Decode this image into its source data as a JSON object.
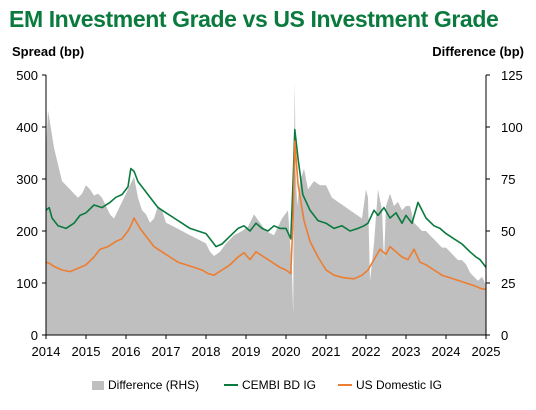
{
  "title": "EM Investment Grade vs US Investment Grade",
  "legend": {
    "items": [
      {
        "label": "Difference (RHS)",
        "color": "#bfbfbf",
        "kind": "area"
      },
      {
        "label": "CEMBI BD IG",
        "color": "#0a7a3e",
        "kind": "line"
      },
      {
        "label": "US Domestic IG",
        "color": "#ed7d31",
        "kind": "line"
      }
    ]
  },
  "chart_data": {
    "type": "line",
    "title": "EM Investment Grade vs US Investment Grade",
    "ylabel": "Spread (bp)",
    "y2label": "Difference (bp)",
    "ylim": [
      0,
      500
    ],
    "y2lim": [
      0,
      125
    ],
    "yticks": [
      "0",
      "100",
      "200",
      "300",
      "400",
      "500"
    ],
    "y2ticks": [
      "0",
      "25",
      "50",
      "75",
      "100",
      "125"
    ],
    "xlim": [
      2014,
      2025
    ],
    "xticks": [
      "2014",
      "2015",
      "2016",
      "2017",
      "2018",
      "2019",
      "2020",
      "2021",
      "2022",
      "2023",
      "2024",
      "2025"
    ],
    "grid": false,
    "legend_position": "bottom",
    "series": [
      {
        "name": "CEMBI BD IG",
        "axis": "left",
        "color": "#0a7a3e",
        "x": [
          2014.0,
          2014.08,
          2014.15,
          2014.3,
          2014.5,
          2014.7,
          2014.85,
          2015.0,
          2015.2,
          2015.4,
          2015.6,
          2015.75,
          2015.9,
          2016.05,
          2016.12,
          2016.2,
          2016.3,
          2016.45,
          2016.6,
          2016.8,
          2017.0,
          2017.2,
          2017.4,
          2017.6,
          2017.8,
          2018.0,
          2018.1,
          2018.25,
          2018.4,
          2018.6,
          2018.8,
          2018.95,
          2019.1,
          2019.25,
          2019.4,
          2019.55,
          2019.7,
          2019.85,
          2020.0,
          2020.12,
          2020.18,
          2020.22,
          2020.3,
          2020.42,
          2020.6,
          2020.8,
          2021.0,
          2021.2,
          2021.4,
          2021.6,
          2021.8,
          2021.95,
          2022.05,
          2022.2,
          2022.3,
          2022.45,
          2022.6,
          2022.75,
          2022.9,
          2023.0,
          2023.15,
          2023.3,
          2023.5,
          2023.7,
          2023.85,
          2024.0,
          2024.2,
          2024.4,
          2024.6,
          2024.75,
          2024.85,
          2024.95,
          2025.0
        ],
        "values": [
          240,
          245,
          225,
          210,
          205,
          215,
          230,
          235,
          250,
          245,
          255,
          265,
          270,
          285,
          320,
          315,
          295,
          280,
          265,
          245,
          235,
          225,
          215,
          205,
          200,
          195,
          185,
          170,
          175,
          190,
          205,
          210,
          200,
          215,
          205,
          200,
          210,
          205,
          205,
          185,
          300,
          395,
          340,
          270,
          240,
          220,
          215,
          205,
          210,
          200,
          205,
          210,
          215,
          240,
          230,
          245,
          225,
          235,
          215,
          230,
          215,
          255,
          225,
          210,
          205,
          195,
          185,
          175,
          160,
          150,
          145,
          135,
          130
        ]
      },
      {
        "name": "US Domestic IG",
        "axis": "left",
        "color": "#ed7d31",
        "x": [
          2014.0,
          2014.08,
          2014.2,
          2014.4,
          2014.6,
          2014.8,
          2015.0,
          2015.2,
          2015.35,
          2015.55,
          2015.75,
          2015.9,
          2016.05,
          2016.12,
          2016.2,
          2016.35,
          2016.5,
          2016.7,
          2016.9,
          2017.1,
          2017.3,
          2017.5,
          2017.7,
          2017.9,
          2018.05,
          2018.2,
          2018.4,
          2018.6,
          2018.8,
          2018.95,
          2019.1,
          2019.25,
          2019.45,
          2019.65,
          2019.85,
          2020.0,
          2020.12,
          2020.18,
          2020.22,
          2020.3,
          2020.45,
          2020.6,
          2020.8,
          2021.0,
          2021.2,
          2021.45,
          2021.7,
          2021.9,
          2022.05,
          2022.2,
          2022.35,
          2022.5,
          2022.6,
          2022.75,
          2022.9,
          2023.05,
          2023.2,
          2023.35,
          2023.5,
          2023.7,
          2023.9,
          2024.1,
          2024.3,
          2024.5,
          2024.7,
          2024.85,
          2024.95,
          2025.0
        ],
        "values": [
          140,
          138,
          132,
          125,
          122,
          128,
          135,
          150,
          165,
          170,
          180,
          185,
          200,
          210,
          225,
          205,
          190,
          170,
          160,
          150,
          140,
          135,
          130,
          125,
          118,
          115,
          125,
          135,
          150,
          158,
          145,
          160,
          150,
          140,
          130,
          125,
          118,
          230,
          373,
          290,
          220,
          180,
          150,
          125,
          115,
          110,
          108,
          115,
          125,
          145,
          165,
          155,
          170,
          160,
          150,
          145,
          165,
          140,
          135,
          125,
          115,
          110,
          105,
          100,
          95,
          90,
          88,
          88
        ]
      },
      {
        "name": "Difference (RHS)",
        "axis": "right",
        "type": "area",
        "color": "#bfbfbf",
        "x": [
          2014.0,
          2014.05,
          2014.1,
          2014.15,
          2014.2,
          2014.3,
          2014.4,
          2014.5,
          2014.6,
          2014.7,
          2014.8,
          2014.9,
          2015.0,
          2015.1,
          2015.2,
          2015.3,
          2015.4,
          2015.5,
          2015.6,
          2015.7,
          2015.8,
          2015.9,
          2016.0,
          2016.1,
          2016.2,
          2016.3,
          2016.4,
          2016.5,
          2016.6,
          2016.7,
          2016.8,
          2016.9,
          2017.0,
          2017.2,
          2017.4,
          2017.6,
          2017.8,
          2018.0,
          2018.1,
          2018.2,
          2018.35,
          2018.5,
          2018.7,
          2018.9,
          2019.05,
          2019.2,
          2019.35,
          2019.5,
          2019.7,
          2019.9,
          2020.05,
          2020.15,
          2020.18,
          2020.2,
          2020.22,
          2020.24,
          2020.28,
          2020.35,
          2020.45,
          2020.55,
          2020.7,
          2020.85,
          2021.0,
          2021.15,
          2021.3,
          2021.45,
          2021.6,
          2021.75,
          2021.9,
          2022.0,
          2022.05,
          2022.1,
          2022.2,
          2022.3,
          2022.4,
          2022.45,
          2022.5,
          2022.6,
          2022.7,
          2022.8,
          2022.9,
          2023.0,
          2023.1,
          2023.2,
          2023.3,
          2023.4,
          2023.5,
          2023.6,
          2023.7,
          2023.8,
          2023.9,
          2024.0,
          2024.1,
          2024.2,
          2024.3,
          2024.4,
          2024.5,
          2024.6,
          2024.7,
          2024.8,
          2024.9,
          2025.0
        ],
        "values": [
          88,
          108,
          102,
          96,
          90,
          82,
          74,
          72,
          70,
          68,
          66,
          68,
          72,
          70,
          67,
          68,
          66,
          62,
          58,
          56,
          60,
          64,
          68,
          72,
          76,
          66,
          60,
          58,
          54,
          56,
          62,
          60,
          54,
          52,
          50,
          48,
          46,
          44,
          40,
          38,
          40,
          44,
          48,
          50,
          52,
          58,
          54,
          50,
          48,
          56,
          60,
          30,
          10,
          90,
          122,
          80,
          62,
          74,
          80,
          70,
          74,
          72,
          72,
          66,
          64,
          62,
          60,
          58,
          56,
          70,
          66,
          26,
          44,
          70,
          60,
          36,
          62,
          68,
          62,
          64,
          60,
          62,
          62,
          54,
          52,
          50,
          50,
          48,
          46,
          44,
          42,
          42,
          40,
          38,
          36,
          36,
          34,
          30,
          28,
          26,
          28,
          24
        ]
      }
    ]
  }
}
